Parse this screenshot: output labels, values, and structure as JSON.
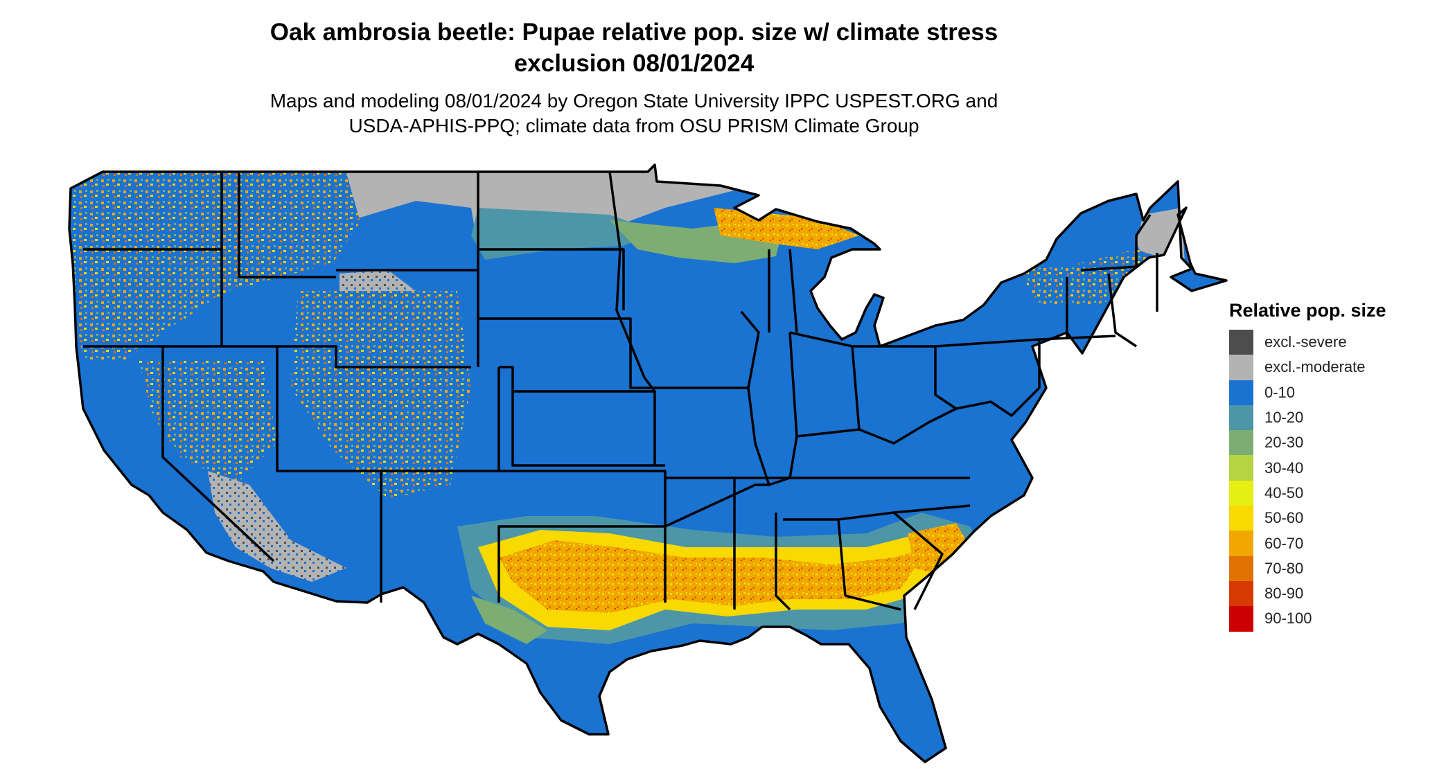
{
  "title_line1": "Oak ambrosia beetle: Pupae relative pop. size w/ climate stress",
  "title_line2": "exclusion 08/01/2024",
  "subtitle_line1": "Maps and modeling 08/01/2024 by Oregon State University IPPC USPEST.ORG and",
  "subtitle_line2": "USDA-APHIS-PPQ; climate data from OSU PRISM Climate Group",
  "legend": {
    "title": "Relative pop. size",
    "items": [
      {
        "label": "excl.-severe",
        "color": "#4d4d4d"
      },
      {
        "label": "excl.-moderate",
        "color": "#b3b3b3"
      },
      {
        "label": "0-10",
        "color": "#1a72d1"
      },
      {
        "label": "10-20",
        "color": "#4c96a8"
      },
      {
        "label": "20-30",
        "color": "#7dad72"
      },
      {
        "label": "30-40",
        "color": "#b5d43f"
      },
      {
        "label": "40-50",
        "color": "#e6ef14"
      },
      {
        "label": "50-60",
        "color": "#f8d900"
      },
      {
        "label": "60-70",
        "color": "#f0a800"
      },
      {
        "label": "70-80",
        "color": "#e07300"
      },
      {
        "label": "80-90",
        "color": "#d63a00"
      },
      {
        "label": "90-100",
        "color": "#cc0000"
      }
    ]
  },
  "colors": {
    "border": "#000000",
    "background": "#ffffff"
  }
}
